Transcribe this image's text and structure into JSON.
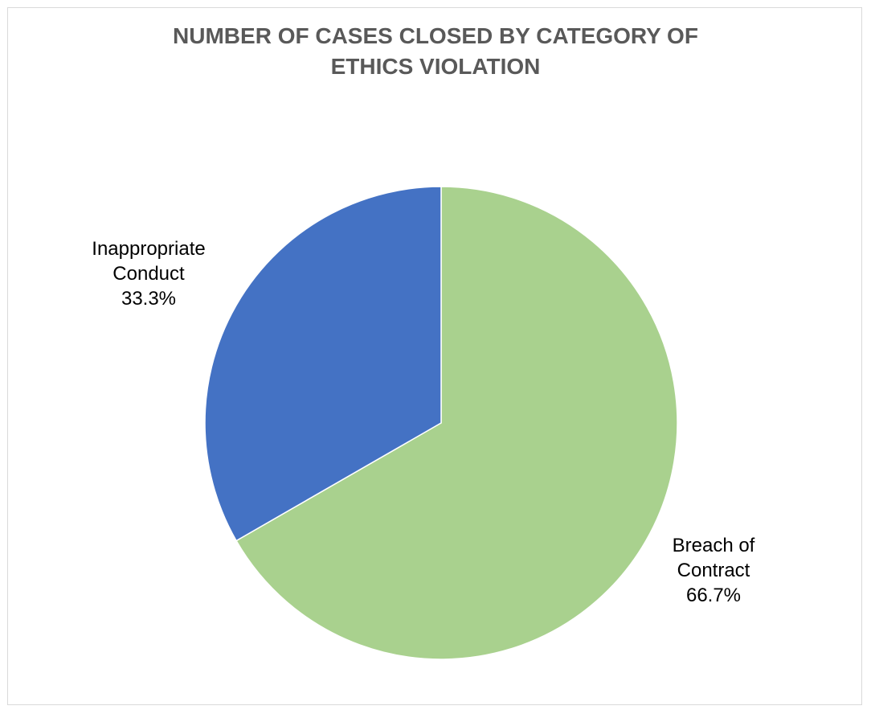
{
  "chart_data": {
    "type": "pie",
    "title_lines": [
      "NUMBER OF CASES CLOSED BY CATEGORY OF",
      "ETHICS VIOLATION"
    ],
    "slices": [
      {
        "label_lines": [
          "Breach of",
          "Contract"
        ],
        "value_label": "66.7%",
        "value": 66.7,
        "color": "#a9d18e"
      },
      {
        "label_lines": [
          "Inappropriate",
          "Conduct"
        ],
        "value_label": "33.3%",
        "value": 33.3,
        "color": "#4472c4"
      }
    ],
    "legend": "none",
    "data_labels": "outside"
  }
}
